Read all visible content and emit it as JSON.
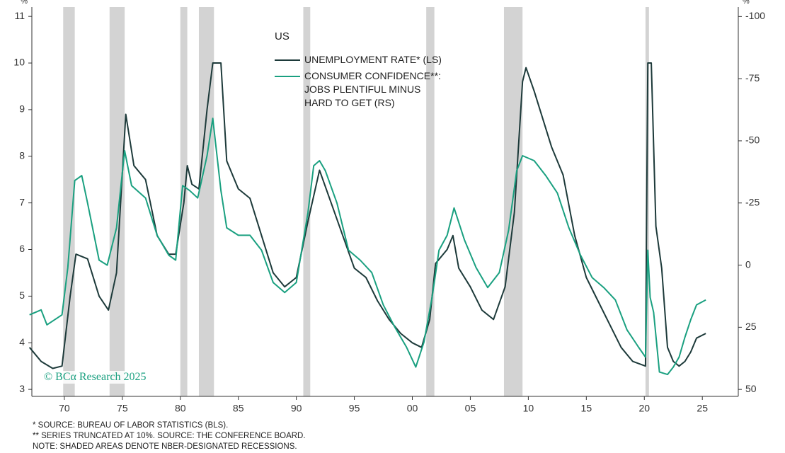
{
  "chart_data": {
    "type": "line",
    "title": "US",
    "ylabel": "%",
    "y2label": "%",
    "watermark": "© BCα Research 2025",
    "notes": [
      "*  SOURCE: BUREAU OF LABOR STATISTICS (BLS).",
      "** SERIES TRUNCATED AT 10%. SOURCE: THE CONFERENCE BOARD.",
      "NOTE: SHADED AREAS DENOTE NBER-DESIGNATED RECESSIONS."
    ],
    "recessions": [
      [
        1969.9,
        1970.9
      ],
      [
        1973.9,
        1975.2
      ],
      [
        1980.0,
        1980.6
      ],
      [
        1981.6,
        1982.9
      ],
      [
        1990.6,
        1991.2
      ],
      [
        2001.2,
        2001.9
      ],
      [
        2007.9,
        2009.5
      ],
      [
        2020.1,
        2020.4
      ]
    ],
    "recession_color": "#d3d3d3",
    "xlim": [
      1967.2,
      2028.1
    ],
    "xticks": [
      {
        "value": 1970,
        "label": "70"
      },
      {
        "value": 1975,
        "label": "75"
      },
      {
        "value": 1980,
        "label": "80"
      },
      {
        "value": 1985,
        "label": "85"
      },
      {
        "value": 1990,
        "label": "90"
      },
      {
        "value": 1995,
        "label": "95"
      },
      {
        "value": 2000,
        "label": "00"
      },
      {
        "value": 2005,
        "label": "05"
      },
      {
        "value": 2010,
        "label": "10"
      },
      {
        "value": 2015,
        "label": "15"
      },
      {
        "value": 2020,
        "label": "20"
      },
      {
        "value": 2025,
        "label": "25"
      }
    ],
    "ylim": [
      2.85,
      11.2
    ],
    "yticks": [
      3,
      4,
      5,
      6,
      7,
      8,
      9,
      10,
      11
    ],
    "y2lim": [
      52.8,
      -103.8
    ],
    "y2ticks": [
      50,
      25,
      0,
      -25,
      -50,
      -75,
      -100
    ],
    "series": [
      {
        "name": "UNEMPLOYMENT RATE* (LS)",
        "color": "#1d3a3a",
        "x": [
          1967,
          1968,
          1969,
          1969.8,
          1970.5,
          1971,
          1972,
          1973,
          1973.8,
          1974.5,
          1975.3,
          1976,
          1977,
          1978,
          1979,
          1979.6,
          1980.3,
          1980.6,
          1981,
          1981.6,
          1982.3,
          1982.8,
          1983.5,
          1984,
          1985,
          1986,
          1987,
          1988,
          1989,
          1990,
          1991,
          1992,
          1993,
          1994,
          1995,
          1996,
          1997,
          1998,
          1999,
          2000,
          2000.8,
          2001.5,
          2002,
          2003,
          2003.5,
          2004,
          2005,
          2006,
          2007,
          2008,
          2008.8,
          2009.5,
          2009.8,
          2010.5,
          2011,
          2012,
          2013,
          2014,
          2015,
          2016,
          2017,
          2018,
          2019,
          2020.1,
          2020.3,
          2020.6,
          2021,
          2021.5,
          2022,
          2022.5,
          2023,
          2023.5,
          2024,
          2024.5,
          2025.3
        ],
        "values": [
          3.9,
          3.6,
          3.45,
          3.5,
          5.0,
          5.9,
          5.8,
          5.0,
          4.7,
          5.5,
          8.9,
          7.8,
          7.5,
          6.3,
          5.9,
          5.9,
          7.0,
          7.8,
          7.4,
          7.3,
          9.0,
          10,
          10,
          7.9,
          7.3,
          7.1,
          6.3,
          5.5,
          5.2,
          5.4,
          6.6,
          7.7,
          7.0,
          6.3,
          5.6,
          5.4,
          4.9,
          4.5,
          4.2,
          4.0,
          3.9,
          4.5,
          5.7,
          6.0,
          6.3,
          5.6,
          5.2,
          4.7,
          4.5,
          5.2,
          6.8,
          9.6,
          9.9,
          9.4,
          9.0,
          8.2,
          7.6,
          6.3,
          5.4,
          4.9,
          4.4,
          3.9,
          3.6,
          3.5,
          10,
          10,
          6.5,
          5.6,
          3.9,
          3.6,
          3.5,
          3.6,
          3.8,
          4.1,
          4.2
        ]
      },
      {
        "name": "CONSUMER CONFIDENCE**: JOBS PLENTIFUL MINUS HARD TO GET (RS)",
        "color": "#1aa080",
        "axis": "y2",
        "x": [
          1967,
          1968,
          1968.5,
          1969.8,
          1970.3,
          1970.9,
          1971.5,
          1972,
          1973,
          1973.7,
          1974.5,
          1975.2,
          1975.8,
          1977,
          1978,
          1979,
          1979.6,
          1980.2,
          1980.8,
          1981.5,
          1982.3,
          1982.8,
          1983.5,
          1984,
          1985,
          1986,
          1987,
          1988,
          1989,
          1990,
          1991,
          1991.5,
          1992,
          1992.5,
          1993.5,
          1994.5,
          1995.5,
          1996.5,
          1997.5,
          1998.5,
          1999.5,
          2000.3,
          2001,
          2001.7,
          2002.3,
          2003,
          2003.6,
          2004.5,
          2005.5,
          2006.5,
          2007.5,
          2008.3,
          2009,
          2009.5,
          2010.5,
          2011.5,
          2012.5,
          2013.5,
          2014.5,
          2015.5,
          2016.5,
          2017.5,
          2018.5,
          2019.5,
          2020.1,
          2020.3,
          2020.5,
          2020.8,
          2021.3,
          2022,
          2022.5,
          2023,
          2023.5,
          2024,
          2024.5,
          2025.3
        ],
        "values": [
          20,
          18,
          24,
          20,
          1,
          -34,
          -36,
          -25,
          -2,
          0,
          -15,
          -46,
          -32,
          -27,
          -12,
          -4,
          -2,
          -32,
          -30,
          -27,
          -44,
          -59,
          -30,
          -15,
          -12,
          -12,
          -6,
          7,
          11,
          7,
          -21,
          -40,
          -42,
          -38,
          -25,
          -6,
          -2,
          3,
          16,
          25,
          33,
          41,
          31,
          13,
          -6,
          -12,
          -23,
          -10,
          1,
          9,
          3,
          -14,
          -38,
          -44,
          -42,
          -36,
          -29,
          -15,
          -4,
          5,
          9,
          14,
          26,
          33,
          37,
          -6,
          13,
          19,
          43,
          44,
          41,
          37,
          29,
          22,
          16,
          14
        ]
      }
    ]
  }
}
